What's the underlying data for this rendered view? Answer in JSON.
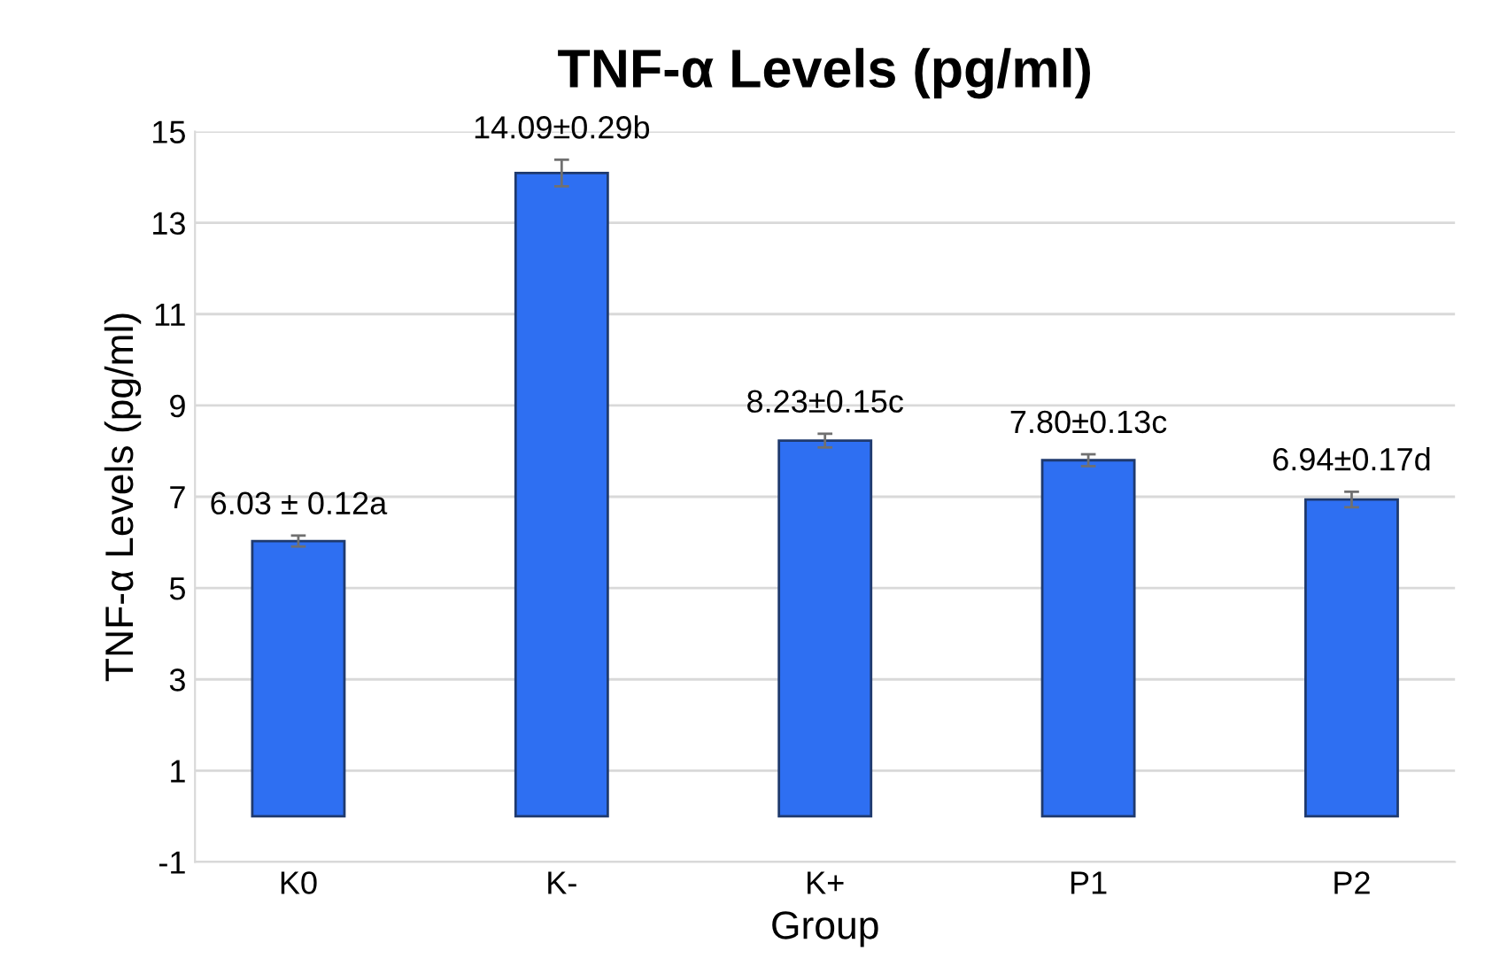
{
  "chart_data": {
    "type": "bar",
    "title": "TNF-α Levels (pg/ml)",
    "xlabel": "Group",
    "ylabel": "TNF-α Levels (pg/ml)",
    "categories": [
      "K0",
      "K-",
      "K+",
      "P1",
      "P2"
    ],
    "values": [
      6.03,
      14.09,
      8.23,
      7.8,
      6.94
    ],
    "errors": [
      0.12,
      0.29,
      0.15,
      0.13,
      0.17
    ],
    "value_labels": [
      "6.03 ± 0.12a",
      "14.09±0.29b",
      "8.23±0.15c",
      "7.80±0.13c",
      "6.94±0.17d"
    ],
    "color": "#2e6ff2",
    "ylim": [
      -1,
      15
    ],
    "yticks": [
      -1,
      1,
      3,
      5,
      7,
      9,
      11,
      13,
      15
    ],
    "grid": "y"
  }
}
